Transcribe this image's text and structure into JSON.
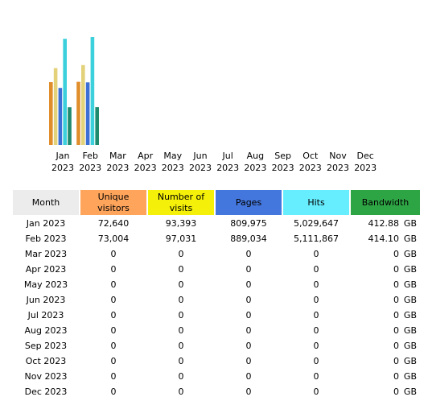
{
  "colors": {
    "unique_visitors": "#ffa45b",
    "number_of_visits": "#f4f00a",
    "pages": "#4477dd",
    "hits": "#66eeff",
    "bandwidth": "#2ea545",
    "month_header": "#ececec"
  },
  "chart_data": {
    "type": "bar",
    "categories": [
      [
        "Jan",
        "2023"
      ],
      [
        "Feb",
        "2023"
      ],
      [
        "Mar",
        "2023"
      ],
      [
        "Apr",
        "2023"
      ],
      [
        "May",
        "2023"
      ],
      [
        "Jun",
        "2023"
      ],
      [
        "Jul",
        "2023"
      ],
      [
        "Aug",
        "2023"
      ],
      [
        "Sep",
        "2023"
      ],
      [
        "Oct",
        "2023"
      ],
      [
        "Nov",
        "2023"
      ],
      [
        "Dec",
        "2023"
      ]
    ],
    "series": [
      {
        "key": "unique_visitors",
        "color": "#e08e2c",
        "values": [
          72640,
          73004,
          0,
          0,
          0,
          0,
          0,
          0,
          0,
          0,
          0,
          0
        ]
      },
      {
        "key": "number_of_visits",
        "color": "#e3d27a",
        "values": [
          93393,
          97031,
          0,
          0,
          0,
          0,
          0,
          0,
          0,
          0,
          0,
          0
        ]
      },
      {
        "key": "pages",
        "color": "#3b6fd6",
        "values": [
          809975,
          889034,
          0,
          0,
          0,
          0,
          0,
          0,
          0,
          0,
          0,
          0
        ]
      },
      {
        "key": "hits",
        "color": "#3ccfdc",
        "values": [
          5029647,
          5111867,
          0,
          0,
          0,
          0,
          0,
          0,
          0,
          0,
          0,
          0
        ]
      },
      {
        "key": "bandwidth_gb",
        "color": "#1e8a6e",
        "values": [
          412.88,
          414.1,
          0,
          0,
          0,
          0,
          0,
          0,
          0,
          0,
          0,
          0
        ]
      }
    ]
  },
  "table": {
    "headers": {
      "month": "Month",
      "unique_visitors": [
        "Unique",
        "visitors"
      ],
      "number_of_visits": [
        "Number of",
        "visits"
      ],
      "pages": "Pages",
      "hits": "Hits",
      "bandwidth": "Bandwidth"
    },
    "rows": [
      {
        "month": "Jan 2023",
        "unique": "72,640",
        "visits": "93,393",
        "pages": "809,975",
        "hits": "5,029,647",
        "bw": "412.88",
        "unit": "GB"
      },
      {
        "month": "Feb 2023",
        "unique": "73,004",
        "visits": "97,031",
        "pages": "889,034",
        "hits": "5,111,867",
        "bw": "414.10",
        "unit": "GB"
      },
      {
        "month": "Mar 2023",
        "unique": "0",
        "visits": "0",
        "pages": "0",
        "hits": "0",
        "bw": "0",
        "unit": "GB"
      },
      {
        "month": "Apr 2023",
        "unique": "0",
        "visits": "0",
        "pages": "0",
        "hits": "0",
        "bw": "0",
        "unit": "GB"
      },
      {
        "month": "May 2023",
        "unique": "0",
        "visits": "0",
        "pages": "0",
        "hits": "0",
        "bw": "0",
        "unit": "GB"
      },
      {
        "month": "Jun 2023",
        "unique": "0",
        "visits": "0",
        "pages": "0",
        "hits": "0",
        "bw": "0",
        "unit": "GB"
      },
      {
        "month": "Jul 2023",
        "unique": "0",
        "visits": "0",
        "pages": "0",
        "hits": "0",
        "bw": "0",
        "unit": "GB"
      },
      {
        "month": "Aug 2023",
        "unique": "0",
        "visits": "0",
        "pages": "0",
        "hits": "0",
        "bw": "0",
        "unit": "GB"
      },
      {
        "month": "Sep 2023",
        "unique": "0",
        "visits": "0",
        "pages": "0",
        "hits": "0",
        "bw": "0",
        "unit": "GB"
      },
      {
        "month": "Oct 2023",
        "unique": "0",
        "visits": "0",
        "pages": "0",
        "hits": "0",
        "bw": "0",
        "unit": "GB"
      },
      {
        "month": "Nov 2023",
        "unique": "0",
        "visits": "0",
        "pages": "0",
        "hits": "0",
        "bw": "0",
        "unit": "GB"
      },
      {
        "month": "Dec 2023",
        "unique": "0",
        "visits": "0",
        "pages": "0",
        "hits": "0",
        "bw": "0",
        "unit": "GB"
      }
    ]
  }
}
